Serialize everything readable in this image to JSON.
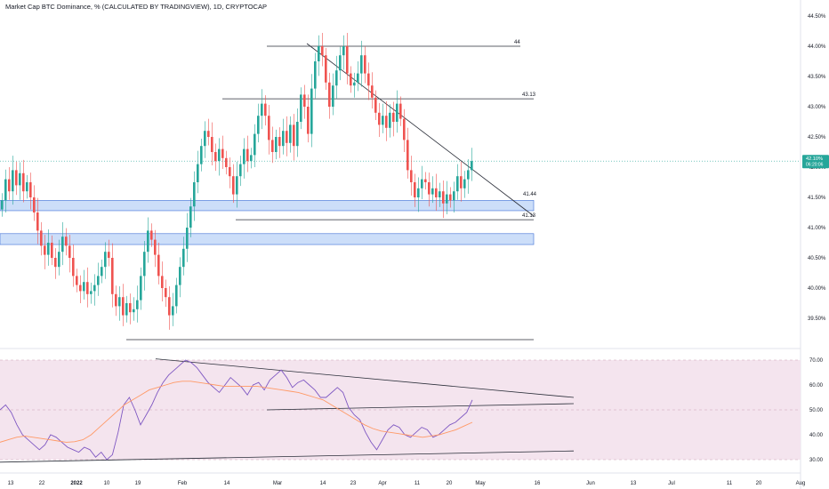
{
  "header": {
    "title": "Market Cap BTC Dominance, %  (CALCULATED BY TRADINGVIEW), 1D, CRYPTOCAP"
  },
  "colors": {
    "up": "#26a69a",
    "down": "#ef5350",
    "support_band": "#bbd3f7",
    "support_band_border": "#3d6fd6",
    "rsi_line": "#7e57c2",
    "rsi_ma": "#ff9966",
    "rsi_bg": "#f4e4ee",
    "price_tag": "#26a69a"
  },
  "price_axis": {
    "ticks": [
      "44.50%",
      "44.00%",
      "43.50%",
      "43.00%",
      "42.50%",
      "42.00%",
      "41.50%",
      "41.00%",
      "40.50%",
      "40.00%",
      "39.50%"
    ],
    "current_value": "42.10%",
    "countdown": "06:20:06"
  },
  "rsi_axis": {
    "ticks": [
      "70.00",
      "60.00",
      "50.00",
      "40.00",
      "30.00"
    ]
  },
  "time_axis": {
    "labels": [
      "13",
      "22",
      "2022",
      "10",
      "19",
      "Feb",
      "14",
      "Mar",
      "14",
      "23",
      "Apr",
      "11",
      "20",
      "May",
      "16",
      "Jun",
      "13",
      "Jul",
      "11",
      "20",
      "Aug"
    ]
  },
  "level_labels": [
    "44",
    "43.13",
    "41.13",
    "41.44"
  ],
  "chart_data": {
    "type": "candlestick",
    "title": "Market Cap BTC Dominance, %  (CALCULATED BY TRADINGVIEW), 1D, CRYPTOCAP",
    "y_unit": "%",
    "ylim": [
      39.1,
      44.75
    ],
    "levels": [
      44.0,
      43.13,
      41.13,
      41.44,
      39.2
    ],
    "zones": [
      [
        41.28,
        41.45
      ],
      [
        40.72,
        40.9
      ]
    ],
    "trendline": {
      "from": [
        44.0
      ],
      "to": [
        41.2
      ]
    },
    "candles_close": [
      41.45,
      41.8,
      41.6,
      41.95,
      41.7,
      41.9,
      41.6,
      41.75,
      41.5,
      41.25,
      40.95,
      40.7,
      40.55,
      40.75,
      40.5,
      40.35,
      40.6,
      40.85,
      40.7,
      40.5,
      40.2,
      40.05,
      39.95,
      40.1,
      39.9,
      39.95,
      40.05,
      40.2,
      40.35,
      40.6,
      40.5,
      39.9,
      39.7,
      39.85,
      39.55,
      39.75,
      39.6,
      39.65,
      39.8,
      40.2,
      40.6,
      40.95,
      40.8,
      40.55,
      40.2,
      40.0,
      39.85,
      39.55,
      39.7,
      40.05,
      40.35,
      40.65,
      41.0,
      41.35,
      41.75,
      42.05,
      42.35,
      42.6,
      42.5,
      42.25,
      42.1,
      42.3,
      42.15,
      42.0,
      41.85,
      41.55,
      41.85,
      42.05,
      42.3,
      42.1,
      42.2,
      42.55,
      42.85,
      43.05,
      42.85,
      42.45,
      42.25,
      42.5,
      42.35,
      42.6,
      42.4,
      42.7,
      42.35,
      42.75,
      43.2,
      43.0,
      42.55,
      43.3,
      43.75,
      44.0,
      43.85,
      43.4,
      43.0,
      43.35,
      43.6,
      43.85,
      44.0,
      43.55,
      43.35,
      43.4,
      43.55,
      43.85,
      43.55,
      43.35,
      43.15,
      42.9,
      42.7,
      42.85,
      42.65,
      42.9,
      42.75,
      43.05,
      42.8,
      42.45,
      41.95,
      41.75,
      41.5,
      41.65,
      41.8,
      41.75,
      41.55,
      41.65,
      41.5,
      41.6,
      41.4,
      41.55,
      41.45,
      41.6,
      41.85,
      41.65,
      41.8,
      41.95,
      42.1
    ],
    "rsi_ylim": [
      28,
      74
    ],
    "rsi_bands": [
      70,
      50,
      30
    ],
    "rsi_series": [
      {
        "name": "RSI",
        "values": [
          50,
          52,
          49,
          44,
          40,
          38,
          36,
          34,
          36,
          40,
          39,
          37,
          35,
          34,
          33,
          35,
          34,
          31,
          33,
          30,
          32,
          41,
          52,
          55,
          50,
          44,
          48,
          52,
          57,
          61,
          64,
          66,
          68,
          70,
          69,
          67,
          64,
          61,
          59,
          57,
          60,
          63,
          61,
          59,
          56,
          60,
          61,
          58,
          62,
          64,
          66,
          63,
          59,
          61,
          62,
          60,
          58,
          55,
          55,
          57,
          59,
          57,
          51,
          48,
          46,
          41,
          37,
          34,
          38,
          42,
          44,
          43,
          40,
          39,
          41,
          43,
          42,
          39,
          40,
          42,
          44,
          45,
          47,
          49,
          54
        ]
      },
      {
        "name": "MA",
        "values": [
          37,
          38,
          39,
          39.5,
          39,
          38.5,
          38,
          37.5,
          37,
          37.2,
          38,
          40,
          43,
          46,
          49,
          52,
          54,
          56,
          58,
          59,
          60,
          61,
          61.5,
          61.5,
          61,
          60.5,
          60,
          59.5,
          59.5,
          59.5,
          59.5,
          59.5,
          59,
          58.5,
          58,
          57.5,
          57,
          56,
          55,
          54,
          52,
          50,
          48,
          46,
          44,
          42.5,
          41.5,
          41,
          40.5,
          40,
          39.5,
          39,
          39.5,
          40,
          41,
          42,
          43.5,
          45
        ]
      }
    ]
  }
}
